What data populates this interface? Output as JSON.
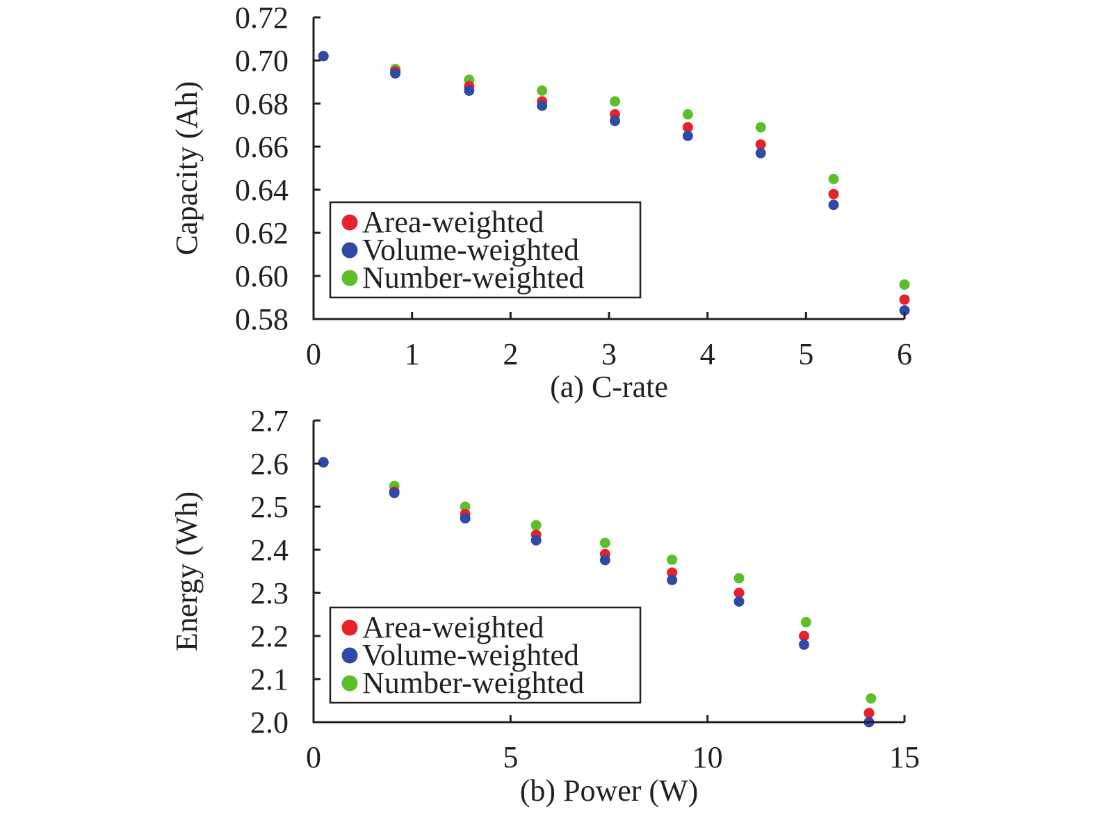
{
  "chart_data": [
    {
      "type": "scatter",
      "title": "",
      "xlabel": "(a) C-rate",
      "ylabel": "Capacity (Ah)",
      "xlim": [
        0,
        6
      ],
      "ylim": [
        0.58,
        0.72
      ],
      "xticks": [
        0,
        1,
        2,
        3,
        4,
        5,
        6
      ],
      "xtick_labels": [
        "0",
        "1",
        "2",
        "3",
        "4",
        "5",
        "6"
      ],
      "yticks": [
        0.58,
        0.6,
        0.62,
        0.64,
        0.66,
        0.68,
        0.7,
        0.72
      ],
      "ytick_labels": [
        "0.58",
        "0.60",
        "0.62",
        "0.64",
        "0.66",
        "0.68",
        "0.70",
        "0.72"
      ],
      "grid": false,
      "legend_position": "bottom-left",
      "x": [
        0.1,
        0.83,
        1.58,
        2.32,
        3.06,
        3.8,
        4.54,
        5.28,
        6.0
      ],
      "series": [
        {
          "name": "Area-weighted",
          "color": "#e8212a",
          "values": [
            0.702,
            0.695,
            0.688,
            0.681,
            0.675,
            0.669,
            0.661,
            0.638,
            0.589
          ]
        },
        {
          "name": "Volume-weighted",
          "color": "#2f4aa6",
          "values": [
            0.702,
            0.694,
            0.686,
            0.679,
            0.672,
            0.665,
            0.657,
            0.633,
            0.584
          ]
        },
        {
          "name": "Number-weighted",
          "color": "#5cbf2a",
          "values": [
            0.702,
            0.696,
            0.691,
            0.686,
            0.681,
            0.675,
            0.669,
            0.645,
            0.596
          ]
        }
      ]
    },
    {
      "type": "scatter",
      "title": "",
      "xlabel": "(b) Power (W)",
      "ylabel": "Energy (Wh)",
      "xlim": [
        0,
        15
      ],
      "ylim": [
        2.0,
        2.7
      ],
      "xticks": [
        0,
        5,
        10,
        15
      ],
      "xtick_labels": [
        "0",
        "5",
        "10",
        "15"
      ],
      "yticks": [
        2.0,
        2.1,
        2.2,
        2.3,
        2.4,
        2.5,
        2.6,
        2.7
      ],
      "ytick_labels": [
        "2.0",
        "2.1",
        "2.2",
        "2.3",
        "2.4",
        "2.5",
        "2.6",
        "2.7"
      ],
      "grid": false,
      "legend_position": "bottom-left",
      "series": [
        {
          "name": "Area-weighted",
          "color": "#e8212a",
          "x": [
            0.25,
            2.05,
            3.85,
            5.65,
            7.4,
            9.1,
            10.8,
            12.45,
            14.1
          ],
          "values": [
            2.603,
            2.535,
            2.483,
            2.435,
            2.39,
            2.347,
            2.3,
            2.2,
            2.021
          ]
        },
        {
          "name": "Volume-weighted",
          "color": "#2f4aa6",
          "x": [
            0.25,
            2.05,
            3.85,
            5.65,
            7.4,
            9.1,
            10.8,
            12.45,
            14.1
          ],
          "values": [
            2.603,
            2.532,
            2.473,
            2.422,
            2.376,
            2.33,
            2.28,
            2.18,
            2.0
          ]
        },
        {
          "name": "Number-weighted",
          "color": "#5cbf2a",
          "x": [
            0.25,
            2.05,
            3.85,
            5.65,
            7.4,
            9.1,
            10.8,
            12.5,
            14.15
          ],
          "values": [
            2.603,
            2.548,
            2.5,
            2.457,
            2.416,
            2.377,
            2.334,
            2.232,
            2.055
          ]
        }
      ]
    }
  ]
}
